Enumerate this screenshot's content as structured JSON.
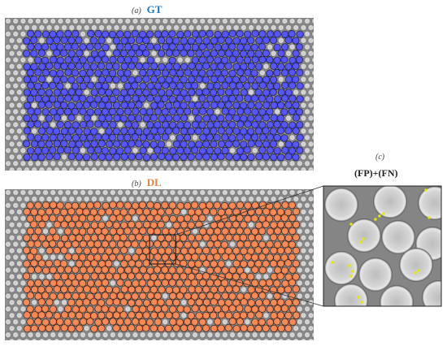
{
  "panel_a": {
    "letter": "(a)",
    "label": "GT",
    "overlay_color": "#3c3cff"
  },
  "panel_b": {
    "letter": "(b)",
    "label": "DL",
    "overlay_color": "#ff7a3a"
  },
  "panel_c": {
    "letter": "(c)",
    "label": "(FP)+(FN)",
    "marker_color": "#e8e800"
  },
  "colors": {
    "background_gray": "#8e8e8e",
    "particle_light": "#d8d8d8",
    "connector": "#333333"
  }
}
